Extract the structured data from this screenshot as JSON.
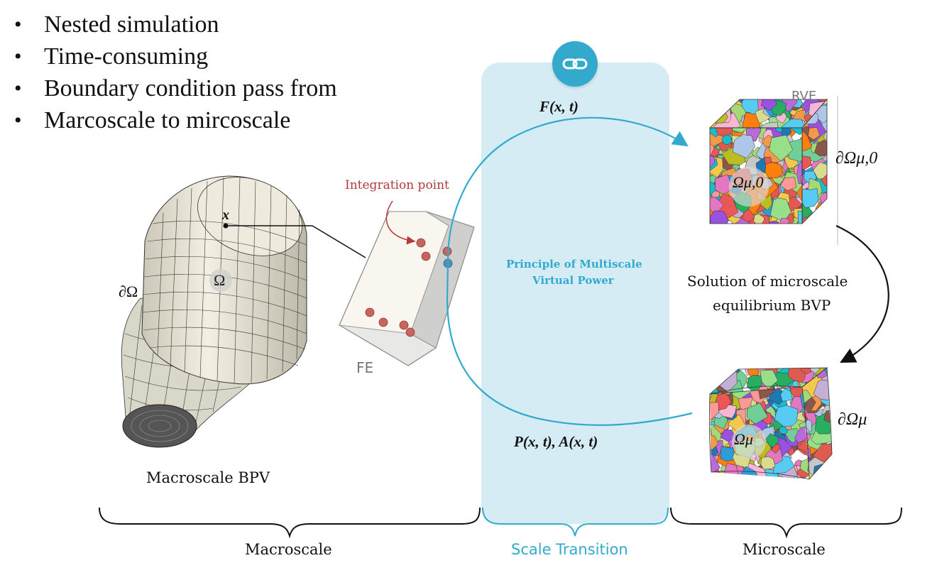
{
  "bullets": [
    "Nested simulation",
    "Time-consuming",
    "Boundary condition pass from",
    "Marcoscale to mircoscale"
  ],
  "labels": {
    "integration_point": "Integration point",
    "fe": "FE",
    "x_point": "x",
    "omega": "Ω",
    "d_omega": "∂Ω",
    "macroscale_bpv": "Macroscale BPV",
    "principle_line1": "Principle of Multiscale",
    "principle_line2": "Virtual Power",
    "f_xt": "F(x, t)",
    "pa_xt": "P(x, t), A(x, t)",
    "rve": "RVE",
    "d_omega_mu0": "∂Ωμ,0",
    "omega_mu0": "Ωμ,0",
    "solution_line1": "Solution of microscale",
    "solution_line2": "equilibrium BVP",
    "d_omega_mu": "∂Ωμ",
    "omega_mu": "Ωμ"
  },
  "scales": {
    "macroscale": "Macroscale",
    "scale_transition": "Scale Transition",
    "microscale": "Microscale"
  },
  "icons": {
    "link": "link-icon"
  },
  "colors": {
    "accent": "#33aacd",
    "panel": "#cfe9f3",
    "integration": "#b23a3a",
    "point": "#c8635e"
  }
}
